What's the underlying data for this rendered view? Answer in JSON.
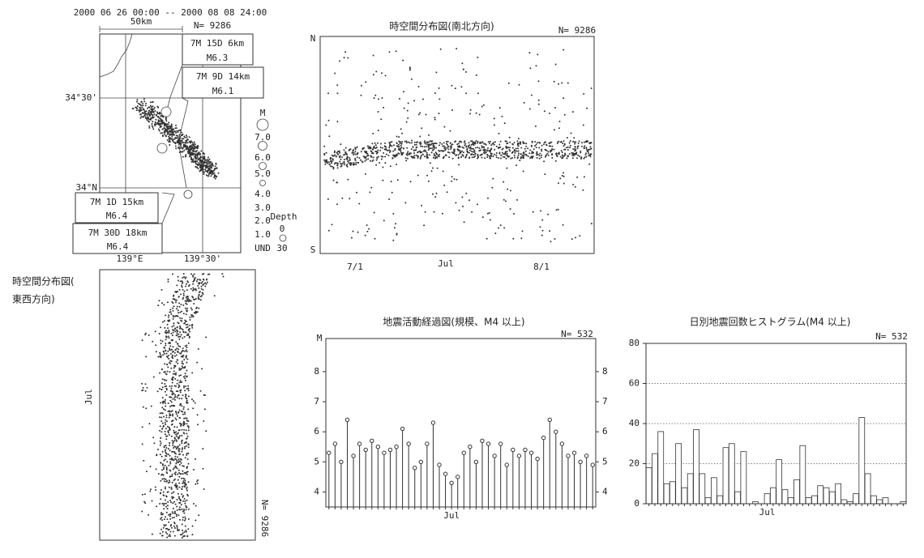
{
  "map": {
    "period": "2000 06 26 00:00 -- 2000 08 08 24:00",
    "scale": "50km",
    "count": "N= 9286",
    "events": [
      {
        "when": "7M 15D 6km",
        "mag": "M6.3"
      },
      {
        "when": "7M 9D 14km",
        "mag": "M6.1"
      },
      {
        "when": "7M 1D 15km",
        "mag": "M6.4"
      },
      {
        "when": "7M 30D 18km",
        "mag": "M6.4"
      }
    ],
    "lat_labels": [
      "34°30'",
      "34°N"
    ],
    "lon_labels": [
      "139°E",
      "139°30'"
    ],
    "mag_legend": {
      "title": "M",
      "labels": [
        "7.0",
        "6.0",
        "5.0",
        "4.0",
        "3.0",
        "2.0",
        "1.0",
        "UND"
      ]
    },
    "depth_legend": {
      "title": "Depth",
      "labels": [
        "0",
        "30"
      ]
    }
  },
  "ns_plot": {
    "title": "時空間分布図(南北方向)",
    "count": "N= 9286",
    "north": "N",
    "south": "S",
    "x_labels": [
      "7/1",
      "Jul",
      "8/1"
    ]
  },
  "ew_plot": {
    "title_lines": [
      "時空間分布図(",
      "東西方向)"
    ],
    "x_label": "Jul",
    "count": "N= 9286"
  },
  "chart_data": [
    {
      "type": "stem",
      "title": "地震活動経過図(規模、M4 以上)",
      "count": "N= 532",
      "y_label": "M",
      "color": "#333333",
      "categories": [
        null,
        null,
        null,
        null,
        null,
        null,
        null,
        null,
        null,
        null,
        null,
        null,
        null,
        null,
        null,
        null,
        null,
        null,
        null,
        null,
        "Jul",
        null,
        null,
        null,
        null,
        null,
        null,
        null,
        null,
        null,
        null,
        null,
        null,
        null,
        null,
        null,
        null,
        null,
        null,
        null,
        null,
        null,
        null,
        null
      ],
      "values": [
        5.3,
        5.6,
        5.0,
        6.4,
        5.2,
        5.6,
        5.4,
        5.7,
        5.5,
        5.3,
        5.4,
        5.5,
        6.1,
        5.6,
        4.8,
        5.0,
        5.6,
        6.3,
        4.9,
        4.6,
        4.3,
        4.5,
        5.3,
        5.5,
        5.0,
        5.7,
        5.6,
        5.2,
        5.6,
        4.9,
        5.4,
        5.2,
        5.4,
        5.3,
        5.1,
        5.8,
        6.4,
        6.0,
        5.6,
        5.2,
        5.3,
        5.0,
        5.2,
        4.9
      ],
      "ylim": [
        3.5,
        9.1
      ],
      "yticks": [
        4,
        5,
        6,
        7,
        8
      ]
    },
    {
      "type": "bar",
      "title": "日別地震回数ヒストグラム(M4 以上)",
      "count": "N= 532",
      "color": "#ffffff",
      "categories": [
        null,
        null,
        null,
        null,
        null,
        null,
        null,
        null,
        null,
        null,
        null,
        null,
        null,
        null,
        null,
        null,
        null,
        null,
        null,
        null,
        "Jul",
        null,
        null,
        null,
        null,
        null,
        null,
        null,
        null,
        null,
        null,
        null,
        null,
        null,
        null,
        null,
        null,
        null,
        null,
        null,
        null,
        null,
        null,
        null
      ],
      "values": [
        18,
        25,
        36,
        10,
        11,
        30,
        8,
        15,
        37,
        15,
        3,
        13,
        4,
        28,
        30,
        6,
        26,
        0,
        1,
        0,
        5,
        8,
        22,
        7,
        3,
        12,
        29,
        3,
        4,
        9,
        8,
        6,
        10,
        2,
        1,
        5,
        43,
        15,
        4,
        2,
        3,
        0,
        0,
        1
      ],
      "ylim": [
        0,
        80
      ],
      "yticks": [
        0,
        20,
        40,
        60,
        80
      ],
      "grid": true
    }
  ]
}
